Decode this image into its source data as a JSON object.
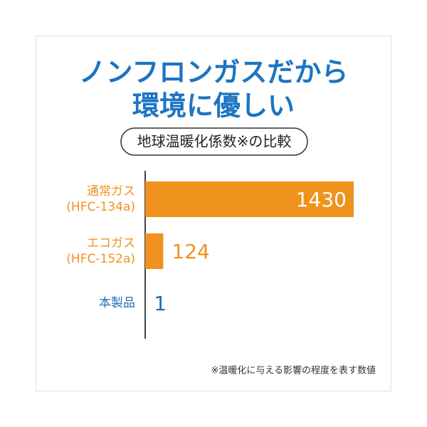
{
  "chart_data": {
    "type": "bar",
    "orientation": "horizontal",
    "title_lines": [
      "ノンフロンガスだから",
      "環境に優しい"
    ],
    "subtitle": "地球温暖化係数※の比較",
    "categories": [
      "通常ガス\n(HFC-134a)",
      "エコガス\n(HFC-152a)",
      "本製品"
    ],
    "values": [
      1430,
      124,
      1
    ],
    "colors": [
      "#f0921e",
      "#f0921e",
      "#1f6fb5"
    ],
    "footnote": "※温暖化に与える影響の程度を表す数値"
  }
}
